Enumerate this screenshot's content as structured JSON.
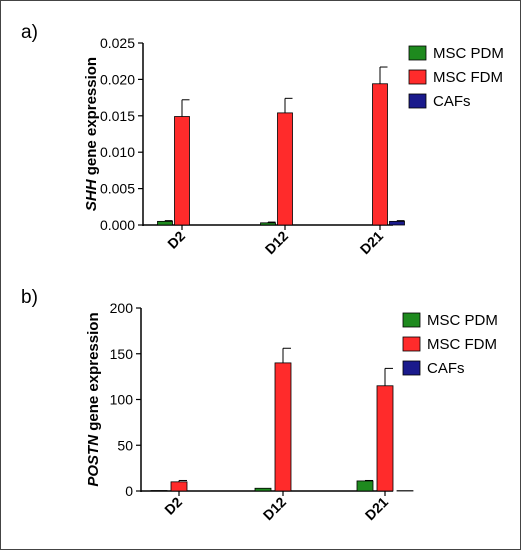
{
  "chart_data": [
    {
      "type": "bar",
      "panel_label": "a)",
      "ylabel_gene": "SHH",
      "ylabel_rest": " gene expression",
      "xlabel": "",
      "categories": [
        "D2",
        "D12",
        "D21"
      ],
      "ylim": [
        0,
        0.025
      ],
      "yticks": [
        0,
        0.005,
        0.01,
        0.015,
        0.02,
        0.025
      ],
      "ytick_labels": [
        "0.000",
        "0.005",
        "0.010",
        "0.015",
        "0.020",
        "0.025"
      ],
      "legend_position": "top-right",
      "series": [
        {
          "name": "MSC PDM",
          "color": "#1e8a1e",
          "values": [
            0.0005,
            0.0003,
            0.0
          ],
          "errors": [
            0.0001,
            0.0001,
            0.0
          ]
        },
        {
          "name": "MSC FDM",
          "color": "#ff2b2b",
          "values": [
            0.0149,
            0.0154,
            0.0194
          ],
          "errors": [
            0.0023,
            0.002,
            0.0023
          ]
        },
        {
          "name": "CAFs",
          "color": "#1a1a8c",
          "values": [
            0.0,
            0.0,
            0.0005
          ],
          "errors": [
            0.0,
            0.0,
            0.0001
          ]
        }
      ]
    },
    {
      "type": "bar",
      "panel_label": "b)",
      "ylabel_gene": "POSTN",
      "ylabel_rest": " gene expression",
      "xlabel": "",
      "categories": [
        "D2",
        "D12",
        "D21"
      ],
      "ylim": [
        0,
        200
      ],
      "yticks": [
        0,
        50,
        100,
        150,
        200
      ],
      "ytick_labels": [
        "0",
        "50",
        "100",
        "150",
        "200"
      ],
      "legend_position": "top-right",
      "series": [
        {
          "name": "MSC PDM",
          "color": "#1e8a1e",
          "values": [
            0.5,
            3,
            11
          ],
          "errors": [
            0,
            0,
            0.5
          ]
        },
        {
          "name": "MSC FDM",
          "color": "#ff2b2b",
          "values": [
            10,
            140,
            115
          ],
          "errors": [
            1.5,
            16,
            19
          ]
        },
        {
          "name": "CAFs",
          "color": "#1a1a8c",
          "values": [
            0,
            0,
            0.4
          ],
          "errors": [
            0,
            0,
            0
          ]
        }
      ]
    }
  ]
}
